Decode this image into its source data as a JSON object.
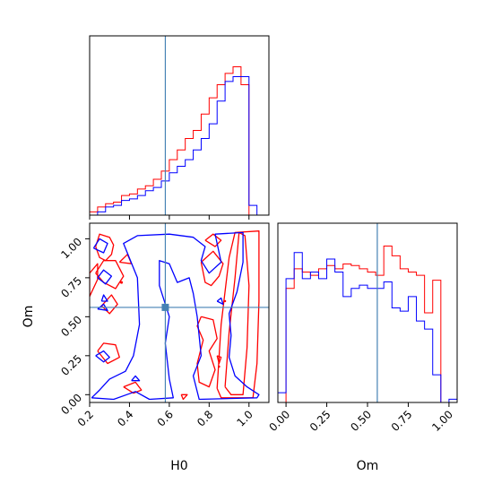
{
  "chart_data": {
    "type": "corner",
    "parameters": [
      "H0",
      "Om"
    ],
    "truths": {
      "H0": 0.58,
      "Om": 0.56
    },
    "colors": {
      "series_a": "#ff0000",
      "series_b": "#0000ff",
      "truth": "#4682b4"
    },
    "H0_axis": {
      "xlim": [
        0.2,
        1.1
      ],
      "ticks": [
        0.2,
        0.4,
        0.6,
        0.8,
        1.0
      ],
      "tick_labels": [
        "0.2",
        "0.4",
        "0.6",
        "0.8",
        "1.0"
      ],
      "label": "H0"
    },
    "Om_axis": {
      "xlim": [
        -0.05,
        1.05
      ],
      "ticks": [
        0.0,
        0.25,
        0.5,
        0.75,
        1.0
      ],
      "tick_labels": [
        "0.00",
        "0.25",
        "0.50",
        "0.75",
        "1.00"
      ],
      "label": "Om"
    },
    "Om_y_axis": {
      "ylim": [
        -0.05,
        1.1
      ],
      "ticks": [
        0.0,
        0.25,
        0.5,
        0.75,
        1.0
      ],
      "tick_labels": [
        "0.00",
        "0.25",
        "0.50",
        "0.75",
        "1.00"
      ],
      "label": "Om"
    },
    "hist_H0": {
      "bins": [
        0.2,
        0.24,
        0.28,
        0.32,
        0.36,
        0.4,
        0.44,
        0.48,
        0.52,
        0.56,
        0.6,
        0.64,
        0.68,
        0.72,
        0.76,
        0.8,
        0.84,
        0.88,
        0.92,
        0.96,
        1.0,
        1.04,
        1.08
      ],
      "red": [
        0.02,
        0.05,
        0.07,
        0.08,
        0.12,
        0.13,
        0.16,
        0.18,
        0.22,
        0.27,
        0.34,
        0.4,
        0.47,
        0.52,
        0.62,
        0.72,
        0.8,
        0.87,
        0.91,
        0.8,
        0.0,
        0.0
      ],
      "blue": [
        0.0,
        0.02,
        0.05,
        0.06,
        0.09,
        0.1,
        0.12,
        0.15,
        0.17,
        0.21,
        0.26,
        0.3,
        0.34,
        0.4,
        0.47,
        0.56,
        0.7,
        0.82,
        0.85,
        0.85,
        0.06,
        0.0
      ],
      "ymax": 1.0
    },
    "hist_Om": {
      "bins": [
        -0.05,
        0.0,
        0.05,
        0.1,
        0.15,
        0.2,
        0.25,
        0.3,
        0.35,
        0.4,
        0.45,
        0.5,
        0.55,
        0.6,
        0.65,
        0.7,
        0.75,
        0.8,
        0.85,
        0.9,
        0.95,
        1.0,
        1.05
      ],
      "red": [
        0.0,
        0.7,
        0.82,
        0.8,
        0.78,
        0.82,
        0.84,
        0.82,
        0.85,
        0.84,
        0.82,
        0.8,
        0.78,
        0.96,
        0.9,
        0.82,
        0.8,
        0.78,
        0.55,
        0.75,
        0.0,
        0.0
      ],
      "blue": [
        0.06,
        0.76,
        0.92,
        0.76,
        0.8,
        0.76,
        0.88,
        0.8,
        0.65,
        0.7,
        0.72,
        0.7,
        0.7,
        0.74,
        0.58,
        0.56,
        0.65,
        0.5,
        0.45,
        0.17,
        0.0,
        0.02
      ],
      "ymax": 1.0
    },
    "contours_red": [
      [
        [
          0.23,
          0.95
        ],
        [
          0.25,
          1.03
        ],
        [
          0.3,
          1.01
        ],
        [
          0.32,
          0.96
        ],
        [
          0.31,
          0.9
        ],
        [
          0.28,
          0.86
        ],
        [
          0.25,
          0.88
        ],
        [
          0.23,
          0.95
        ]
      ],
      [
        [
          0.23,
          0.78
        ],
        [
          0.27,
          0.72
        ],
        [
          0.33,
          0.68
        ],
        [
          0.37,
          0.76
        ],
        [
          0.33,
          0.86
        ],
        [
          0.27,
          0.86
        ],
        [
          0.23,
          0.78
        ]
      ],
      [
        [
          0.26,
          0.57
        ],
        [
          0.3,
          0.52
        ],
        [
          0.34,
          0.58
        ],
        [
          0.31,
          0.64
        ],
        [
          0.26,
          0.57
        ]
      ],
      [
        [
          0.24,
          0.28
        ],
        [
          0.29,
          0.2
        ],
        [
          0.35,
          0.24
        ],
        [
          0.33,
          0.32
        ],
        [
          0.27,
          0.33
        ],
        [
          0.24,
          0.28
        ]
      ],
      [
        [
          0.37,
          0.05
        ],
        [
          0.42,
          0.01
        ],
        [
          0.46,
          0.03
        ],
        [
          0.43,
          0.08
        ],
        [
          0.37,
          0.05
        ]
      ],
      [
        [
          0.35,
          0.85
        ],
        [
          0.41,
          0.84
        ],
        [
          0.39,
          0.9
        ],
        [
          0.35,
          0.85
        ]
      ],
      [
        [
          0.78,
          0.99
        ],
        [
          0.82,
          1.03
        ],
        [
          0.86,
          0.99
        ],
        [
          0.83,
          0.95
        ],
        [
          0.78,
          0.99
        ]
      ],
      [
        [
          0.76,
          0.85
        ],
        [
          0.82,
          0.92
        ],
        [
          0.87,
          0.84
        ],
        [
          0.85,
          0.76
        ],
        [
          0.81,
          0.7
        ],
        [
          0.78,
          0.72
        ],
        [
          0.76,
          0.85
        ]
      ],
      [
        [
          0.76,
          0.5
        ],
        [
          0.82,
          0.48
        ],
        [
          0.84,
          0.36
        ],
        [
          0.8,
          0.28
        ],
        [
          0.83,
          0.16
        ],
        [
          0.8,
          0.05
        ],
        [
          0.75,
          0.08
        ],
        [
          0.74,
          0.2
        ],
        [
          0.77,
          0.35
        ],
        [
          0.74,
          0.44
        ],
        [
          0.76,
          0.5
        ]
      ],
      [
        [
          0.84,
          0.25
        ],
        [
          0.85,
          0.2
        ],
        [
          0.86,
          0.24
        ],
        [
          0.84,
          0.25
        ]
      ],
      [
        [
          0.88,
          0.05
        ],
        [
          0.9,
          0.4
        ],
        [
          0.93,
          0.75
        ],
        [
          0.95,
          1.04
        ],
        [
          0.98,
          1.02
        ],
        [
          1.0,
          0.7
        ],
        [
          0.99,
          0.3
        ],
        [
          0.97,
          0.0
        ],
        [
          0.91,
          0.0
        ],
        [
          0.88,
          0.05
        ]
      ],
      [
        [
          0.84,
          0.04
        ],
        [
          0.86,
          0.45
        ],
        [
          0.9,
          0.88
        ],
        [
          0.93,
          1.04
        ],
        [
          1.05,
          1.05
        ],
        [
          1.05,
          0.6
        ],
        [
          1.04,
          0.2
        ],
        [
          1.02,
          -0.02
        ],
        [
          0.86,
          -0.02
        ],
        [
          0.84,
          0.04
        ]
      ],
      [
        [
          0.2,
          0.63
        ],
        [
          0.2,
          0.78
        ],
        [
          0.24,
          0.84
        ],
        [
          0.24,
          0.74
        ],
        [
          0.2,
          0.63
        ]
      ],
      [
        [
          0.66,
          0.0
        ],
        [
          0.67,
          -0.03
        ],
        [
          0.69,
          0.0
        ],
        [
          0.66,
          0.0
        ]
      ]
    ],
    "contours_blue": [
      [
        [
          0.22,
          0.94
        ],
        [
          0.25,
          1.0
        ],
        [
          0.29,
          0.97
        ],
        [
          0.27,
          0.91
        ],
        [
          0.22,
          0.94
        ]
      ],
      [
        [
          0.24,
          0.75
        ],
        [
          0.27,
          0.8
        ],
        [
          0.31,
          0.76
        ],
        [
          0.28,
          0.71
        ],
        [
          0.24,
          0.75
        ]
      ],
      [
        [
          0.24,
          0.55
        ],
        [
          0.27,
          0.58
        ],
        [
          0.29,
          0.54
        ],
        [
          0.24,
          0.55
        ]
      ],
      [
        [
          0.23,
          0.25
        ],
        [
          0.27,
          0.28
        ],
        [
          0.3,
          0.24
        ],
        [
          0.27,
          0.21
        ],
        [
          0.23,
          0.25
        ]
      ],
      [
        [
          0.26,
          0.6
        ],
        [
          0.27,
          0.64
        ],
        [
          0.29,
          0.6
        ],
        [
          0.26,
          0.6
        ]
      ],
      [
        [
          0.21,
          -0.02
        ],
        [
          0.25,
          0.03
        ],
        [
          0.3,
          0.1
        ],
        [
          0.38,
          0.15
        ],
        [
          0.42,
          0.25
        ],
        [
          0.45,
          0.45
        ],
        [
          0.44,
          0.75
        ],
        [
          0.37,
          0.97
        ],
        [
          0.44,
          1.02
        ],
        [
          0.6,
          1.03
        ],
        [
          0.72,
          1.01
        ],
        [
          0.78,
          0.95
        ],
        [
          0.76,
          0.86
        ],
        [
          0.8,
          0.78
        ],
        [
          0.86,
          0.85
        ],
        [
          0.83,
          1.03
        ],
        [
          0.97,
          1.04
        ],
        [
          0.97,
          0.85
        ],
        [
          0.94,
          0.66
        ],
        [
          0.9,
          0.52
        ],
        [
          0.91,
          0.38
        ],
        [
          0.9,
          0.24
        ],
        [
          0.93,
          0.12
        ],
        [
          0.99,
          0.05
        ],
        [
          1.05,
          0.0
        ],
        [
          1.04,
          -0.02
        ],
        [
          0.75,
          -0.03
        ],
        [
          0.72,
          0.12
        ],
        [
          0.76,
          0.25
        ],
        [
          0.74,
          0.5
        ],
        [
          0.72,
          0.65
        ],
        [
          0.7,
          0.75
        ],
        [
          0.64,
          0.72
        ],
        [
          0.6,
          0.84
        ],
        [
          0.55,
          0.86
        ],
        [
          0.55,
          0.7
        ],
        [
          0.6,
          0.5
        ],
        [
          0.58,
          0.33
        ],
        [
          0.6,
          0.1
        ],
        [
          0.62,
          -0.02
        ],
        [
          0.5,
          -0.03
        ],
        [
          0.43,
          0.02
        ],
        [
          0.32,
          -0.03
        ],
        [
          0.21,
          -0.02
        ]
      ],
      [
        [
          0.41,
          0.09
        ],
        [
          0.43,
          0.12
        ],
        [
          0.45,
          0.09
        ],
        [
          0.41,
          0.09
        ]
      ],
      [
        [
          0.84,
          0.6
        ],
        [
          0.86,
          0.62
        ],
        [
          0.87,
          0.58
        ],
        [
          0.84,
          0.6
        ]
      ]
    ]
  }
}
